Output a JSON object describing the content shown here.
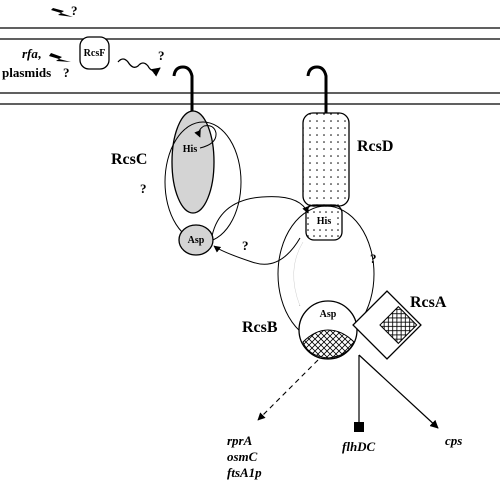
{
  "labels": {
    "rcsf": "RcsF",
    "rcsc": "RcsC",
    "rcsd": "RcsD",
    "rcsb": "RcsB",
    "rcsa": "RcsA",
    "his_c": "His",
    "his_d": "His",
    "asp_c": "Asp",
    "asp_b": "Asp",
    "rfa": "rfa",
    "rfa_comma": ",",
    "plasmids": "plasmids",
    "q_top": "?",
    "q_plasmids": "?",
    "q_rcsf": "?",
    "q_c_left": "?",
    "q_middle": "?",
    "q_d_right": "?",
    "rpra": "rprA",
    "osmc": "osmC",
    "ftsa1p": "ftsA1p",
    "flhdc": "flhDC",
    "cps": "cps"
  },
  "colors": {
    "ink": "#000000",
    "rcsc_fill": "#d4d4d4",
    "background": "#ffffff"
  },
  "icons": [
    "lightning-bolt-icon",
    "lightning-bolt-icon",
    "wavy-arrow-icon"
  ]
}
